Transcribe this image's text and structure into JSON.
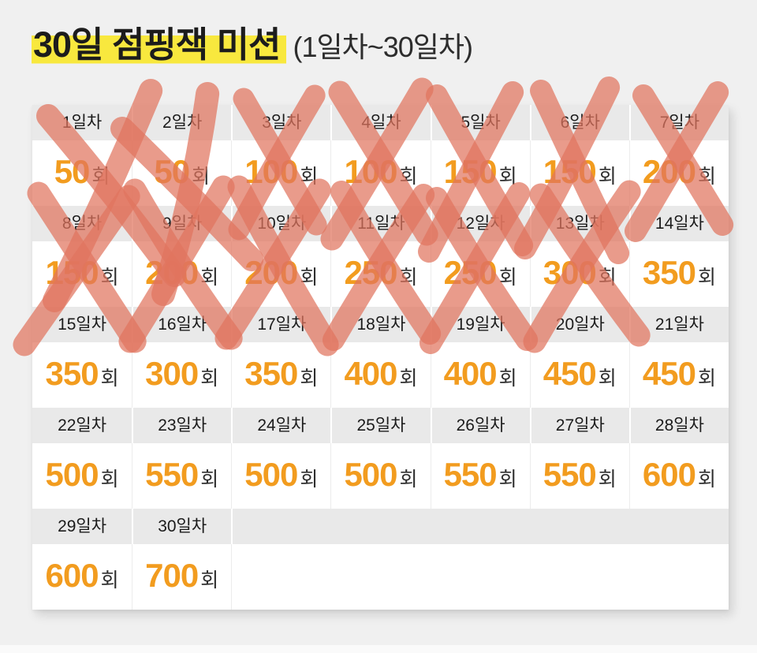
{
  "header": {
    "title": "30일 점핑잭 미션",
    "subtitle": "(1일차~30일차)"
  },
  "table": {
    "columns_per_row": 7,
    "unit_suffix": "회",
    "days": [
      {
        "label": "1일차",
        "count": 50,
        "completed": true
      },
      {
        "label": "2일차",
        "count": 50,
        "completed": true
      },
      {
        "label": "3일차",
        "count": 100,
        "completed": true
      },
      {
        "label": "4일차",
        "count": 100,
        "completed": true
      },
      {
        "label": "5일차",
        "count": 150,
        "completed": true
      },
      {
        "label": "6일차",
        "count": 150,
        "completed": true
      },
      {
        "label": "7일차",
        "count": 200,
        "completed": true
      },
      {
        "label": "8일차",
        "count": 150,
        "completed": true
      },
      {
        "label": "9일차",
        "count": 200,
        "completed": true
      },
      {
        "label": "10일차",
        "count": 200,
        "completed": true
      },
      {
        "label": "11일차",
        "count": 250,
        "completed": true
      },
      {
        "label": "12일차",
        "count": 250,
        "completed": true
      },
      {
        "label": "13일차",
        "count": 300,
        "completed": true
      },
      {
        "label": "14일차",
        "count": 350,
        "completed": false
      },
      {
        "label": "15일차",
        "count": 350,
        "completed": false
      },
      {
        "label": "16일차",
        "count": 300,
        "completed": false
      },
      {
        "label": "17일차",
        "count": 350,
        "completed": false
      },
      {
        "label": "18일차",
        "count": 400,
        "completed": false
      },
      {
        "label": "19일차",
        "count": 400,
        "completed": false
      },
      {
        "label": "20일차",
        "count": 450,
        "completed": false
      },
      {
        "label": "21일차",
        "count": 450,
        "completed": false
      },
      {
        "label": "22일차",
        "count": 500,
        "completed": false
      },
      {
        "label": "23일차",
        "count": 550,
        "completed": false
      },
      {
        "label": "24일차",
        "count": 500,
        "completed": false
      },
      {
        "label": "25일차",
        "count": 500,
        "completed": false
      },
      {
        "label": "26일차",
        "count": 550,
        "completed": false
      },
      {
        "label": "27일차",
        "count": 550,
        "completed": false
      },
      {
        "label": "28일차",
        "count": 600,
        "completed": false
      },
      {
        "label": "29일차",
        "count": 600,
        "completed": false
      },
      {
        "label": "30일차",
        "count": 700,
        "completed": false
      }
    ]
  },
  "colors": {
    "accent_orange": "#f29c1f",
    "highlight_yellow": "#f8e83e",
    "mark_red": "#e0745e",
    "header_band_gray": "#e9e9e9",
    "page_background": "#f0f0f0",
    "separator_gray": "#ececec",
    "cell_white": "#ffffff"
  }
}
